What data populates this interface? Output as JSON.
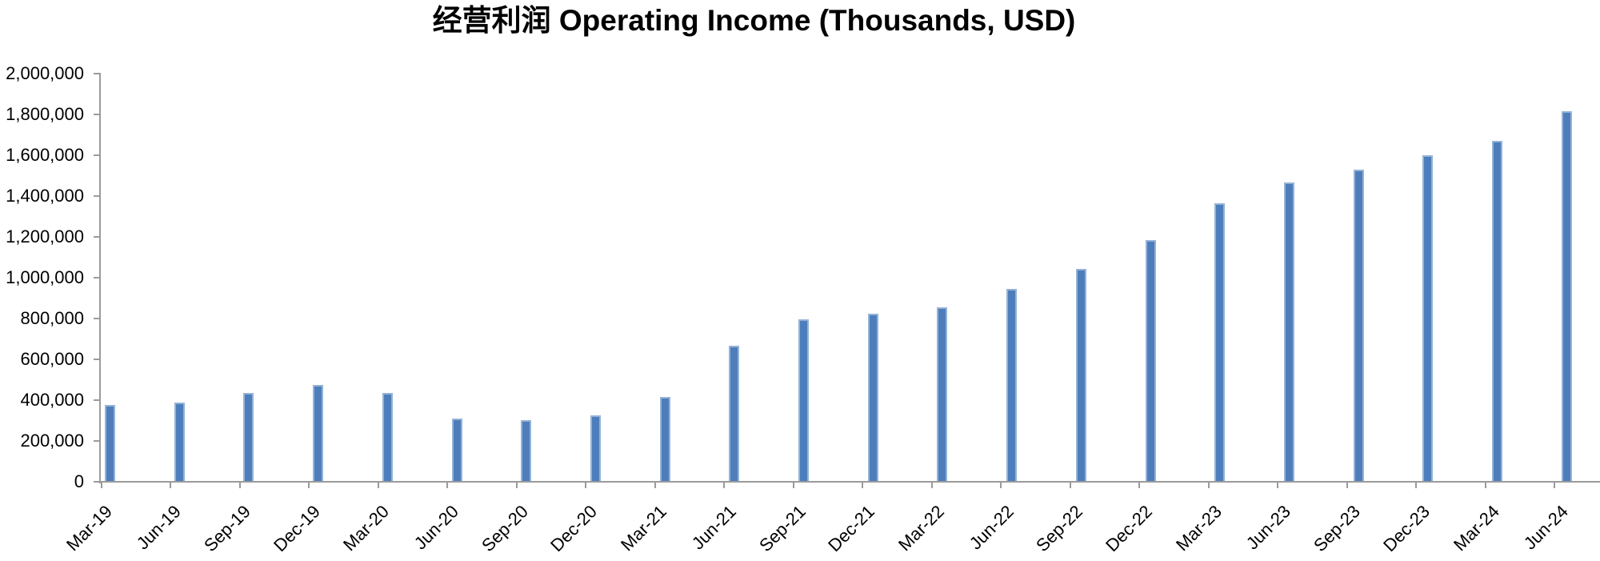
{
  "chart_data": {
    "type": "bar",
    "title": "经营利润 Operating Income (Thousands, USD)",
    "categories": [
      "Mar-19",
      "Jun-19",
      "Sep-19",
      "Dec-19",
      "Mar-20",
      "Jun-20",
      "Sep-20",
      "Dec-20",
      "Mar-21",
      "Jun-21",
      "Sep-21",
      "Dec-21",
      "Mar-22",
      "Jun-22",
      "Sep-22",
      "Dec-22",
      "Mar-23",
      "Jun-23",
      "Sep-23",
      "Dec-23",
      "Mar-24",
      "Jun-24"
    ],
    "values": [
      375000,
      390000,
      435000,
      475000,
      435000,
      310000,
      300000,
      325000,
      415000,
      665000,
      795000,
      825000,
      855000,
      945000,
      1045000,
      1185000,
      1365000,
      1465000,
      1530000,
      1600000,
      1670000,
      1815000
    ],
    "xlabel": "",
    "ylabel": "",
    "ylim": [
      0,
      2000000
    ],
    "ytick_interval": 200000,
    "y_tick_labels": [
      "0",
      "200,000",
      "400,000",
      "600,000",
      "800,000",
      "1,000,000",
      "1,200,000",
      "1,400,000",
      "1,600,000",
      "1,800,000",
      "2,000,000"
    ],
    "grid": false,
    "legend": "none",
    "colors": {
      "bar_fill": "#4d7ebb",
      "bar_border": "#95b3d7",
      "axis": "#9b9b9b",
      "text": "#000000"
    }
  }
}
